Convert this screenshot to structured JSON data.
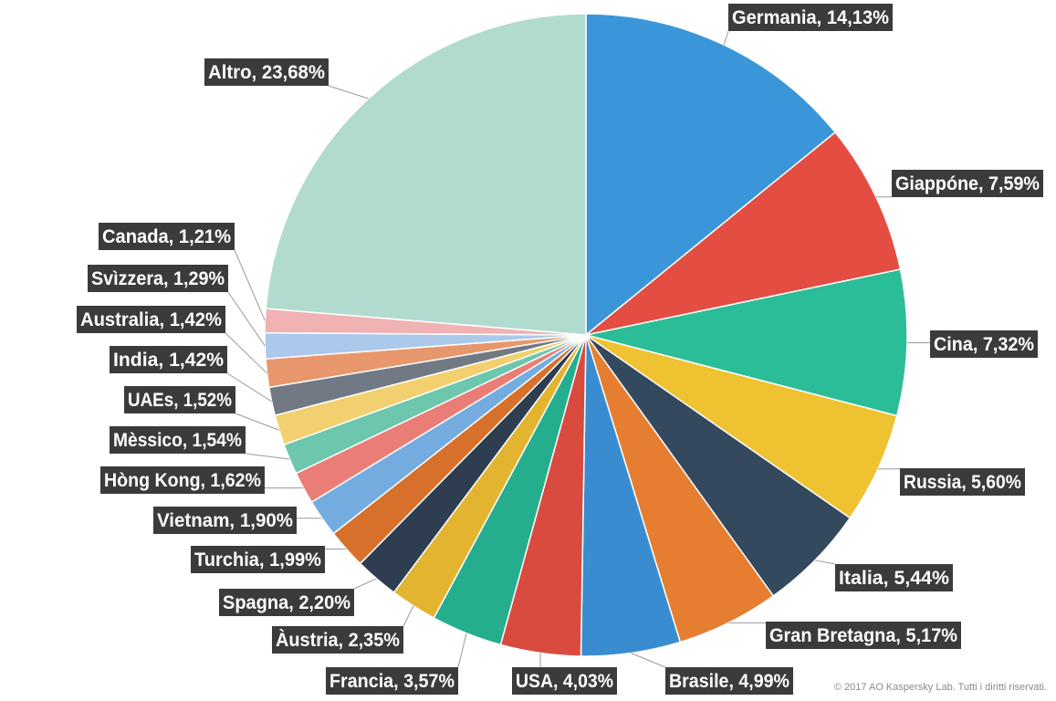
{
  "chart_data": {
    "type": "pie",
    "series": [
      {
        "label": "Germania, 14,13%",
        "value": 14.13,
        "color": "#3a96d8"
      },
      {
        "label": "Giappóne, 7,59%",
        "value": 7.59,
        "color": "#e44d42"
      },
      {
        "label": "Cina, 7,32%",
        "value": 7.32,
        "color": "#2bbd97"
      },
      {
        "label": "Russia, 5,60%",
        "value": 5.6,
        "color": "#eec230"
      },
      {
        "label": "Italia, 5,44%",
        "value": 5.44,
        "color": "#34495e"
      },
      {
        "label": "Gran Bretagna, 5,17%",
        "value": 5.17,
        "color": "#e57e30"
      },
      {
        "label": "Brasile, 4,99%",
        "value": 4.99,
        "color": "#3a8cd0"
      },
      {
        "label": "USA, 4,03%",
        "value": 4.03,
        "color": "#d84b3e"
      },
      {
        "label": "Francia, 3,57%",
        "value": 3.57,
        "color": "#25ae8d"
      },
      {
        "label": "Àustria, 2,35%",
        "value": 2.35,
        "color": "#e2b430"
      },
      {
        "label": "Spagna, 2,20%",
        "value": 2.2,
        "color": "#2e3e50"
      },
      {
        "label": "Turchia, 1,99%",
        "value": 1.99,
        "color": "#d6702a"
      },
      {
        "label": "Vietnam, 1,90%",
        "value": 1.9,
        "color": "#74ace0"
      },
      {
        "label": "Hòng Kong, 1,62%",
        "value": 1.62,
        "color": "#ea7e76"
      },
      {
        "label": "Mèssico, 1,54%",
        "value": 1.54,
        "color": "#6cc7ad"
      },
      {
        "label": "UAEs, 1,52%",
        "value": 1.52,
        "color": "#f2d06f"
      },
      {
        "label": "India, 1,42%",
        "value": 1.42,
        "color": "#717a84"
      },
      {
        "label": "Australia, 1,42%",
        "value": 1.42,
        "color": "#e8976c"
      },
      {
        "label": "Svìzzera, 1,29%",
        "value": 1.29,
        "color": "#acc9ec"
      },
      {
        "label": "Canada, 1,21%",
        "value": 1.21,
        "color": "#f0b2b2"
      },
      {
        "label": "Altro, 23,68%",
        "value": 23.68,
        "color": "#b2dbcf"
      }
    ],
    "label_background": "#3b3b3b",
    "leader_line_color": "#9a9a9a"
  },
  "copyright": "© 2017 AO Kaspersky Lab. Tutti i diritti riservati."
}
